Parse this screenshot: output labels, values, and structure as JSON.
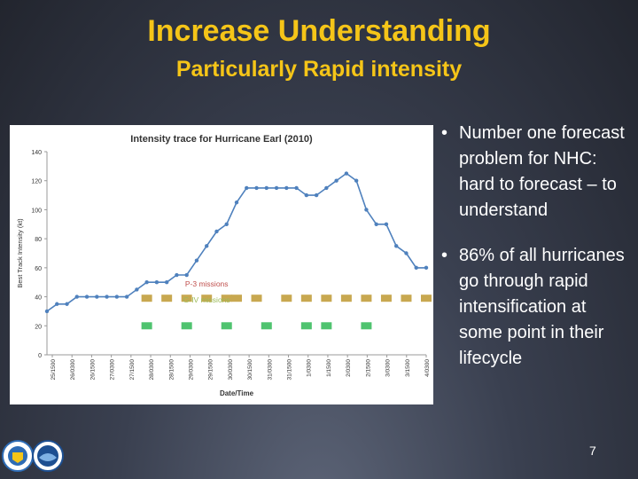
{
  "slide": {
    "title": "Increase Understanding",
    "subtitle": "Particularly Rapid intensity",
    "bullets": [
      "Number one forecast problem for NHC:  hard to forecast – to understand",
      "86% of all hurricanes go through rapid intensification at some point in their lifecycle"
    ],
    "bullet_glyph": "•",
    "page_number": "7"
  },
  "logos": [
    {
      "name": "seal-logo",
      "fill": "#2e6cb5"
    },
    {
      "name": "noaa-logo",
      "fill": "#1d4f91"
    }
  ],
  "chart_data": {
    "type": "line",
    "title": "Intensity trace for Hurricane Earl (2010)",
    "xlabel": "Date/Time",
    "ylabel": "Best Track Intensity (kt)",
    "ylim": [
      0,
      140
    ],
    "yticks": [
      0,
      20,
      40,
      60,
      80,
      100,
      120,
      140
    ],
    "xticks": [
      "25/1500",
      "26/0300",
      "26/1500",
      "27/0300",
      "27/1500",
      "28/0300",
      "28/1500",
      "29/0300",
      "29/1500",
      "30/0300",
      "30/1500",
      "31/0300",
      "31/1500",
      "1/0300",
      "1/1500",
      "2/0300",
      "2/1500",
      "3/0300",
      "3/1500",
      "4/0300"
    ],
    "grid": false,
    "series": [
      {
        "color": "#4f81bd",
        "values": [
          30,
          35,
          35,
          40,
          40,
          40,
          40,
          40,
          40,
          45,
          50,
          50,
          50,
          55,
          55,
          65,
          75,
          85,
          90,
          105,
          115,
          115,
          115,
          115,
          115,
          115,
          110,
          110,
          115,
          120,
          125,
          120,
          100,
          90,
          90,
          75,
          70,
          60,
          60
        ]
      }
    ],
    "annotations": [
      {
        "text": "P-3 missions",
        "color": "#c0504d",
        "y": 49
      },
      {
        "text": "G-IV missions",
        "color": "#9bbb59",
        "y": 38
      }
    ],
    "mission_bars": [
      {
        "name": "P-3",
        "color": "#c8a850",
        "y": 39,
        "slots": [
          10,
          12,
          14,
          16,
          18,
          19,
          21,
          24,
          26,
          28,
          30,
          32,
          34,
          36,
          38
        ]
      },
      {
        "name": "G-IV",
        "color": "#4fc36f",
        "y": 20,
        "slots": [
          10,
          14,
          18,
          22,
          26,
          28,
          32
        ]
      }
    ]
  }
}
